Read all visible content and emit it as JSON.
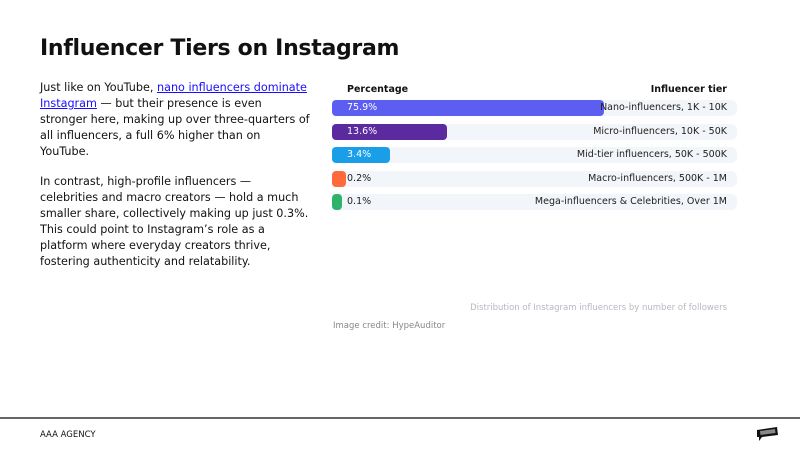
{
  "title": "Influencer Tiers on Instagram",
  "body": {
    "p1_before": "Just like on YouTube, ",
    "p1_link": "nano influencers dominate Instagram",
    "p1_after": " — but their presence is even stronger here, making up over three-quarters of all influencers, a full 6% higher than on YouTube.",
    "p2": "In contrast, high-profile influencers — celebrities and macro creators — hold a much smaller share, collectively making up just 0.3%. This could point to Instagram’s role as a platform where everyday creators thrive, fostering authenticity and relatability."
  },
  "chart_data": {
    "type": "bar",
    "orientation": "horizontal",
    "xlabel": "Percentage",
    "ylabel": "Influencer tier",
    "categories": [
      "Nano-influencers, 1K - 10K",
      "Micro-influencers, 10K - 50K",
      "Mid-tier influencers, 50K - 500K",
      "Macro-influencers, 500K - 1M",
      "Mega-influencers & Celebrities, Over 1M"
    ],
    "values": [
      75.9,
      13.6,
      3.4,
      0.2,
      0.1
    ],
    "labels": [
      "75.9%",
      "13.6%",
      "3.4%",
      "0.2%",
      "0.1%"
    ],
    "colors": [
      "#5b5ef0",
      "#5b2a9e",
      "#1a9ee8",
      "#ff6a3d",
      "#2fb36a"
    ],
    "caption": "Distribution of Instagram influencers by number of followers"
  },
  "credit": "Image credit: HypeAuditor",
  "footer": "AAA AGENCY"
}
